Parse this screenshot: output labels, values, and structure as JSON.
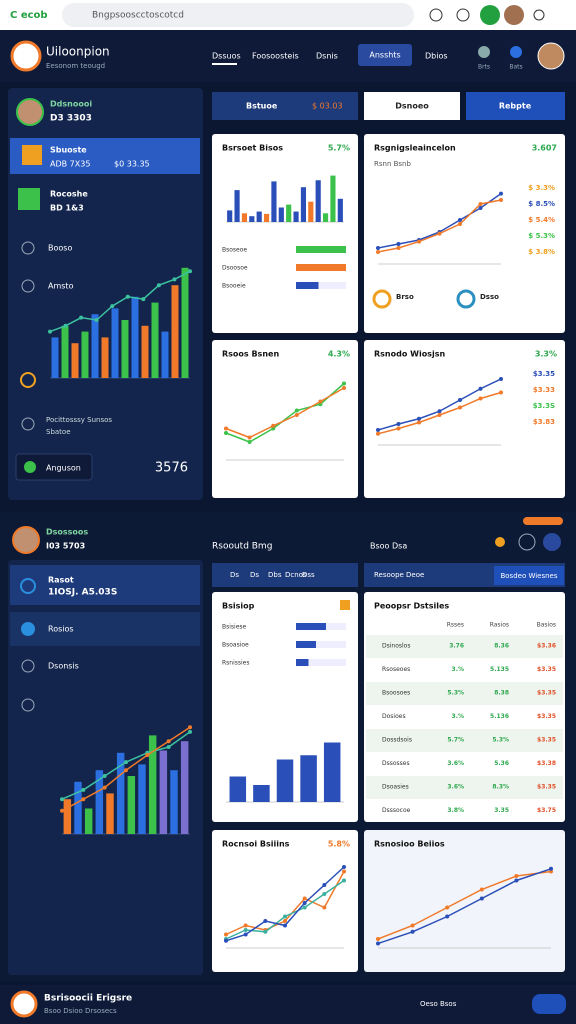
{
  "browser": {
    "logo": "C ecob",
    "url": "Bngpsooscctoscotcd"
  },
  "header": {
    "title": "Uiloonpion",
    "subtitle": "Eesonom teougd",
    "nav": [
      "Dssuos",
      "Foosoosteis",
      "Dsnis"
    ],
    "button": "Ansshts",
    "extra": "Dbios",
    "icons": [
      "Brts",
      "Bats"
    ]
  },
  "sidebar": {
    "profile_name": "Ddsnoooi",
    "profile_value": "D3 3303",
    "active": {
      "label": "Sbuoste",
      "value": "ADB 7X35",
      "extra": "$0 33.35"
    },
    "second": {
      "label": "Rocoshe",
      "value": "BD 1&3"
    },
    "items": [
      "Booso",
      "Amsto"
    ],
    "chart": {
      "ylim": [
        0,
        100
      ],
      "bars": {
        "values": [
          35,
          45,
          30,
          40,
          55,
          35,
          60,
          50,
          70,
          45,
          65,
          40,
          80,
          95
        ],
        "colors": [
          "#2b6fe0",
          "#3cc24a",
          "#f07a2a",
          "#3cc24a",
          "#2b6fe0",
          "#f07a2a",
          "#2b6fe0",
          "#3cc24a",
          "#2b6fe0",
          "#f07a2a",
          "#3cc24a",
          "#2b6fe0",
          "#f07a2a",
          "#3cc24a"
        ]
      },
      "lines": [
        {
          "color": "#3cc2a0",
          "values": [
            40,
            45,
            52,
            50,
            62,
            70,
            68,
            80,
            85,
            92
          ]
        }
      ]
    },
    "footnote": [
      "Pocittosssy Sunsos",
      "Sbatoe"
    ],
    "action": "Anguson",
    "total": "3576"
  },
  "toolbar": {
    "first": "Bstuoe",
    "first_value": "$ 03.03",
    "second": "Dsnoeo",
    "third": "Rebpte"
  },
  "lower": {
    "profile_name": "Dsossoos",
    "profile_value": "I03 5703",
    "heading": "Rsooutd Bmg",
    "heading2": "Bsoo Dsa",
    "sidebar": {
      "active": {
        "label": "Rasot",
        "value": "1IOSJ. A5.03S"
      },
      "items": [
        "Rosios",
        "Dsonsis"
      ],
      "chart": {
        "ylim": [
          0,
          100
        ],
        "bars": {
          "values": [
            30,
            45,
            22,
            55,
            35,
            70,
            50,
            60,
            85,
            72,
            55,
            80
          ],
          "colors": [
            "#f07a2a",
            "#2b6fe0",
            "#3cc24a",
            "#2b6fe0",
            "#f07a2a",
            "#2b6fe0",
            "#3cc24a",
            "#2b6fe0",
            "#3cc24a",
            "#7b6fd0",
            "#2b6fe0",
            "#7b6fd0"
          ]
        },
        "lines": [
          {
            "color": "#3cc2a0",
            "values": [
              30,
              38,
              50,
              62,
              70,
              75,
              88
            ]
          },
          {
            "color": "#f07a2a",
            "values": [
              20,
              30,
              40,
              55,
              68,
              80,
              92
            ]
          }
        ]
      }
    },
    "tabs": [
      "Ds",
      "Ds",
      "Dbs",
      "Dcnos",
      "Dss"
    ],
    "panel_title": "Resoope Deoe",
    "panel_button": "Bosdeo Wiesnes"
  },
  "cards": [
    {
      "title": "Bsrsoet Bisos",
      "badge": "5.7%",
      "badge_color": "#2fa84f",
      "chart": {
        "ylim": [
          0,
          100
        ],
        "bars": {
          "values": [
            20,
            55,
            15,
            10,
            18,
            14,
            70,
            25,
            30,
            18,
            60,
            35,
            72,
            15,
            80,
            40
          ],
          "colors": [
            "#2b4fb8",
            "#2b4fb8",
            "#f07a2a",
            "#2b4fb8",
            "#2b4fb8",
            "#f07a2a",
            "#2b4fb8",
            "#2b4fb8",
            "#3cc24a",
            "#2b4fb8",
            "#2b4fb8",
            "#f07a2a",
            "#2b4fb8",
            "#3cc24a",
            "#3cc24a",
            "#2b4fb8"
          ]
        }
      },
      "xlim": [
        0,
        100
      ],
      "rows": [
        {
          "label": "Bsoseoe",
          "value": 100,
          "color": "#3cc24a"
        },
        {
          "label": "Dsoosoe",
          "value": 100,
          "color": "#f07a2a"
        },
        {
          "label": "Bsooeie",
          "value": 45,
          "color": "#2b4fb8"
        }
      ]
    },
    {
      "title": "Rsgnigsleaincelon",
      "badge": "3.607",
      "badge_color": "#2fa84f",
      "subtitle": "Rsnn Bsnb",
      "chart": {
        "ylim": [
          0,
          100
        ],
        "lines": [
          {
            "color": "#2b4fb8",
            "values": [
              20,
              25,
              30,
              40,
              55,
              70,
              88
            ]
          },
          {
            "color": "#f07a2a",
            "values": [
              15,
              20,
              28,
              38,
              50,
              75,
              80
            ]
          }
        ]
      },
      "legend": [
        {
          "text": "$ 3.3%",
          "color": "#f0a020"
        },
        {
          "text": "$ 8.5%",
          "color": "#2b4fb8"
        },
        {
          "text": "$ 5.4%",
          "color": "#f07a2a"
        },
        {
          "text": "$ 5.3%",
          "color": "#3cc24a"
        },
        {
          "text": "$ 3.8%",
          "color": "#f0a020"
        }
      ],
      "footer": [
        "Brso",
        "Dsso"
      ]
    },
    {
      "title": "Rsoos Bsnen",
      "badge": "4.3%",
      "badge_color": "#2fa84f",
      "chart": {
        "ylim": [
          0,
          100
        ],
        "lines": [
          {
            "color": "#3cc24a",
            "values": [
              30,
              20,
              35,
              55,
              62,
              85
            ]
          },
          {
            "color": "#f07a2a",
            "values": [
              35,
              25,
              38,
              50,
              65,
              80
            ]
          }
        ]
      }
    },
    {
      "title": "Rsnodo Wiosjsn",
      "badge": "3.3%",
      "badge_color": "#2fa84f",
      "chart": {
        "ylim": [
          0,
          100
        ],
        "lines": [
          {
            "color": "#2b4fb8",
            "values": [
              20,
              28,
              35,
              45,
              60,
              75,
              88
            ]
          },
          {
            "color": "#f07a2a",
            "values": [
              15,
              22,
              30,
              40,
              50,
              62,
              70
            ]
          }
        ]
      },
      "legend": [
        {
          "text": "$3.35",
          "color": "#2b4fb8"
        },
        {
          "text": "$3.33",
          "color": "#f07a2a"
        },
        {
          "text": "$3.3S",
          "color": "#3cc24a"
        },
        {
          "text": "$3.83",
          "color": "#f07a2a"
        }
      ]
    },
    {
      "title": "Bsisiop",
      "badge": "",
      "badge_color": "#f0a020",
      "xlim": [
        0,
        100
      ],
      "rows": [
        {
          "label": "Bsisiese",
          "value": 60,
          "color": "#2b4fb8"
        },
        {
          "label": "Bsoasioe",
          "value": 40,
          "color": "#2b4fb8"
        },
        {
          "label": "Rsnissies",
          "value": 25,
          "color": "#2b4fb8"
        }
      ],
      "chart": {
        "ylim": [
          0,
          100
        ],
        "bars": {
          "values": [
            30,
            20,
            50,
            55,
            70
          ],
          "colors": [
            "#2b4fb8",
            "#2b4fb8",
            "#2b4fb8",
            "#2b4fb8",
            "#2b4fb8"
          ]
        }
      }
    },
    {
      "title": "Peoopsr Dstsiles",
      "table": {
        "header": [
          "",
          "Rsses",
          "Rasios",
          "Basios"
        ],
        "column_colors": [
          "#333",
          "#2fa84f",
          "#2fa84f",
          "#e0502a"
        ],
        "rows": [
          [
            "Dsinoslos",
            "3.76",
            "8.36",
            "$3.36"
          ],
          [
            "Rsoseoes",
            "3.%",
            "5.135",
            "$3.35"
          ],
          [
            "Bsoosoes",
            "5.3%",
            "8.38",
            "$3.35"
          ],
          [
            "Dosioes",
            "3.%",
            "5.136",
            "$3.35"
          ],
          [
            "Dossdsois",
            "5.7%",
            "5.3%",
            "$3.35"
          ],
          [
            "Dssosses",
            "3.6%",
            "5.36",
            "$3.38"
          ],
          [
            "Dsoasies",
            "3.6%",
            "8.3%",
            "$3.35"
          ],
          [
            "Dsssocoe",
            "3.8%",
            "3.35",
            "$3.75"
          ]
        ]
      }
    },
    {
      "title": "Rocnsoi Bsiiins",
      "badge": "5.8%",
      "badge_color": "#f07a2a",
      "chart": {
        "ylim": [
          0,
          100
        ],
        "lines": [
          {
            "color": "#f07a2a",
            "values": [
              15,
              25,
              20,
              30,
              55,
              45,
              85
            ]
          },
          {
            "color": "#3cb0a0",
            "values": [
              10,
              20,
              18,
              35,
              45,
              60,
              75
            ]
          },
          {
            "color": "#2b4fb8",
            "values": [
              8,
              15,
              30,
              25,
              50,
              70,
              90
            ]
          }
        ]
      }
    },
    {
      "title": "Rsnosioo Beiios",
      "badge": "",
      "badge_color": "#2fa84f",
      "chart": {
        "ylim": [
          0,
          100
        ],
        "lines": [
          {
            "color": "#f07a2a",
            "values": [
              10,
              25,
              45,
              65,
              80,
              85
            ]
          },
          {
            "color": "#2b4fb8",
            "values": [
              5,
              18,
              35,
              55,
              75,
              88
            ]
          }
        ]
      }
    }
  ],
  "footer": {
    "title": "Bsrisoocii Erigsre",
    "subtitle": "Bsoo Dsioo Drsosecs",
    "link": "Oeso Bsos"
  }
}
